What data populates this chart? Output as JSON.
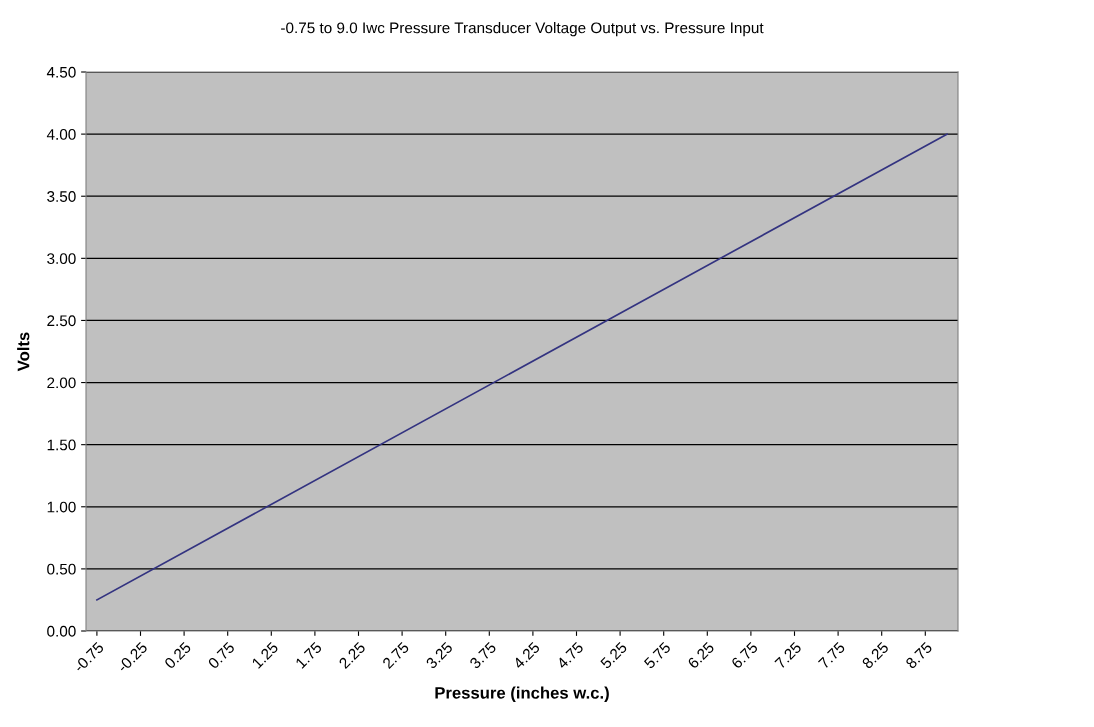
{
  "chart_data": {
    "type": "line",
    "title": "-0.75 to 9.0 Iwc Pressure Transducer Voltage Output vs. Pressure Input",
    "xlabel": "Pressure (inches w.c.)",
    "ylabel": "Volts",
    "x": [
      -0.75,
      9.0
    ],
    "series": [
      {
        "color": "#333380",
        "values": [
          0.25,
          4.0
        ]
      }
    ],
    "xlim": [
      -0.875,
      9.125
    ],
    "xticks": [
      {
        "value": -0.75,
        "label": "-0.75"
      },
      {
        "value": -0.25,
        "label": "-0.25"
      },
      0.25,
      0.75,
      1.25,
      1.75,
      2.25,
      2.75,
      3.25,
      3.75,
      4.25,
      4.75,
      5.25,
      5.75,
      6.25,
      6.75,
      7.25,
      7.75,
      8.25,
      8.75
    ],
    "ylim": [
      0,
      4.5
    ],
    "yticks": [
      {
        "value": 0,
        "label": "0.00"
      },
      {
        "value": 0.5,
        "label": "0.50"
      },
      {
        "value": 1,
        "label": "1.00"
      },
      {
        "value": 1.5,
        "label": "1.50"
      },
      {
        "value": 2,
        "label": "2.00"
      },
      {
        "value": 2.5,
        "label": "2.50"
      },
      {
        "value": 3,
        "label": "3.00"
      },
      {
        "value": 3.5,
        "label": "3.50"
      },
      {
        "value": 4,
        "label": "4.00"
      },
      {
        "value": 4.5,
        "label": "4.50"
      }
    ],
    "grid": "y",
    "legend": false,
    "marker": "none",
    "line_style": "solid"
  }
}
